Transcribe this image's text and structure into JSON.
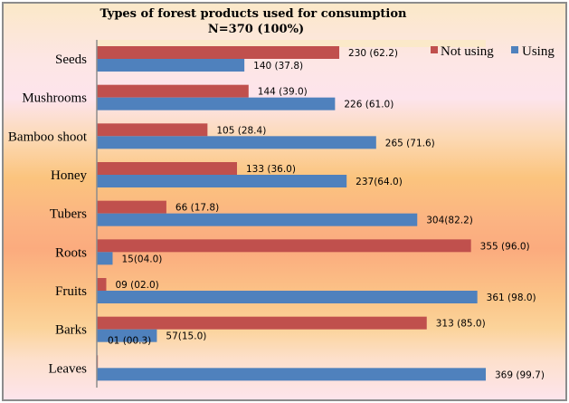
{
  "chart_data": {
    "type": "bar",
    "orientation": "horizontal",
    "title": "Types of forest products used for consumption",
    "subtitle": "N=370 (100%)",
    "xlabel": "",
    "ylabel": "",
    "xlim": [
      0,
      400
    ],
    "grid": false,
    "legend": {
      "placement": "top-right",
      "entries": [
        "Not using",
        "Using"
      ]
    },
    "categories": [
      "Seeds",
      "Mushrooms",
      "Bamboo shoot",
      "Honey",
      "Tubers",
      "Roots",
      "Fruits",
      "Barks",
      "Leaves"
    ],
    "series": [
      {
        "name": "Not using",
        "color": "#c0504d",
        "values": [
          230,
          144,
          105,
          133,
          66,
          355,
          9,
          313,
          1
        ],
        "percents": [
          62.2,
          39.0,
          28.4,
          36.0,
          17.8,
          96.0,
          2.0,
          85.0,
          0.3
        ],
        "labels": [
          "230 (62.2)",
          "144 (39.0)",
          "105 (28.4)",
          "133 (36.0)",
          "66 (17.8)",
          "355 (96.0)",
          "09 (02.0)",
          "313 (85.0)",
          "01 (00.3)"
        ]
      },
      {
        "name": "Using",
        "color": "#4f81bd",
        "values": [
          140,
          226,
          265,
          237,
          304,
          15,
          361,
          57,
          369
        ],
        "percents": [
          37.8,
          61.0,
          71.6,
          64.0,
          82.2,
          4.0,
          98.0,
          15.0,
          99.7
        ],
        "labels": [
          "140 (37.8)",
          "226 (61.0)",
          "265 (71.6)",
          "237(64.0)",
          "304(82.2)",
          "15(04.0)",
          "361 (98.0)",
          "57(15.0)",
          "369 (99.7)"
        ]
      }
    ]
  }
}
